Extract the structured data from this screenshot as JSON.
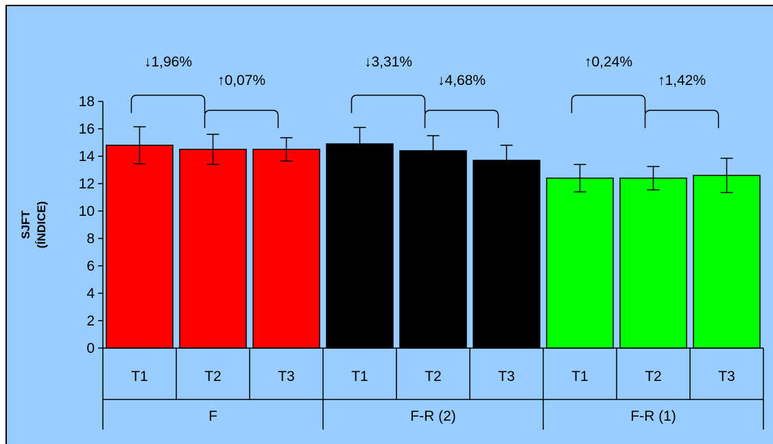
{
  "chart_data": {
    "type": "bar",
    "title": "",
    "ylabel_lines": [
      "SJFT",
      "(ÍNDICE)"
    ],
    "ylim": [
      0,
      18
    ],
    "yticks": [
      0,
      2,
      4,
      6,
      8,
      10,
      12,
      14,
      16,
      18
    ],
    "ytick_labels": [
      "0",
      "2",
      "4",
      "6",
      "8",
      "10",
      "12",
      "14",
      "16",
      "18"
    ],
    "groups": [
      {
        "name": "F",
        "color": "#ff0000",
        "categories": [
          "T1",
          "T2",
          "T3"
        ],
        "values": [
          14.8,
          14.5,
          14.5
        ],
        "errors": [
          1.35,
          1.1,
          0.85
        ],
        "annotations": [
          "↓1,96%",
          "↑0,07%"
        ]
      },
      {
        "name": "F-R (2)",
        "color": "#000000",
        "categories": [
          "T1",
          "T2",
          "T3"
        ],
        "values": [
          14.9,
          14.4,
          13.7
        ],
        "errors": [
          1.2,
          1.1,
          1.1
        ],
        "annotations": [
          "↓3,31%",
          "↓4,68%"
        ]
      },
      {
        "name": "F-R (1)",
        "color": "#00ff00",
        "categories": [
          "T1",
          "T2",
          "T3"
        ],
        "values": [
          12.4,
          12.4,
          12.6
        ],
        "errors": [
          1.0,
          0.85,
          1.25
        ],
        "annotations": [
          "↑0,24%",
          "↑1,42%"
        ]
      }
    ],
    "grid": false,
    "legend": "none"
  }
}
